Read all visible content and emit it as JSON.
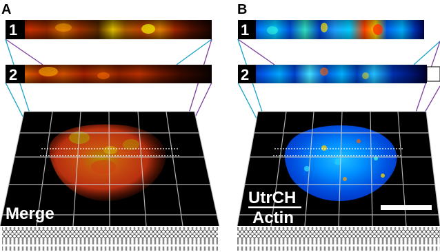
{
  "panels": {
    "a": {
      "letter": "A",
      "slice_labels": [
        "1",
        "2"
      ],
      "overlay_label": "Merge"
    },
    "b": {
      "letter": "B",
      "slice_labels": [
        "1",
        "2"
      ],
      "ratio_numerator": "UtrCH",
      "ratio_denominator": "Actin"
    }
  },
  "colors": {
    "perspective_left": "#7b3fa0",
    "perspective_right": "#1aa3c8",
    "grid": "#d0d0d0",
    "scale_bar": "#ffffff"
  }
}
